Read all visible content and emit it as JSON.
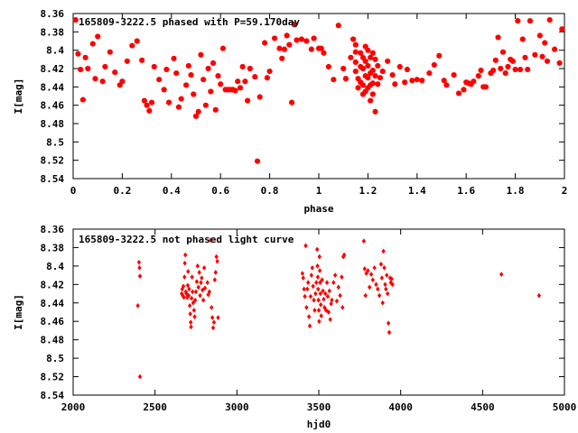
{
  "chart_data": [
    {
      "type": "scatter",
      "title": "165809-3222.5 phased with P=59.170day",
      "xlabel": "phase",
      "ylabel": "I[mag]",
      "xlim": [
        0,
        2
      ],
      "ylim": [
        8.54,
        8.36
      ],
      "y_inverted": true,
      "xticks": [
        "0",
        "0.2",
        "0.4",
        "0.6",
        "0.8",
        "1",
        "1.2",
        "1.4",
        "1.6",
        "1.8",
        "2"
      ],
      "xtick_values": [
        0,
        0.2,
        0.4,
        0.6,
        0.8,
        1.0,
        1.2,
        1.4,
        1.6,
        1.8,
        2.0
      ],
      "yticks": [
        "8.36",
        "8.38",
        "8.4",
        "8.42",
        "8.44",
        "8.46",
        "8.48",
        "8.5",
        "8.52",
        "8.54"
      ],
      "ytick_values": [
        8.36,
        8.38,
        8.4,
        8.42,
        8.44,
        8.46,
        8.48,
        8.5,
        8.52,
        8.54
      ],
      "marker_color": "#ff0000",
      "points": [
        [
          0.01,
          8.367
        ],
        [
          0.02,
          8.404
        ],
        [
          0.03,
          8.421
        ],
        [
          0.04,
          8.454
        ],
        [
          0.05,
          8.408
        ],
        [
          0.06,
          8.42
        ],
        [
          0.08,
          8.393
        ],
        [
          0.09,
          8.431
        ],
        [
          0.1,
          8.385
        ],
        [
          0.12,
          8.434
        ],
        [
          0.13,
          8.418
        ],
        [
          0.15,
          8.402
        ],
        [
          0.17,
          8.424
        ],
        [
          0.19,
          8.438
        ],
        [
          0.2,
          8.434
        ],
        [
          0.22,
          8.412
        ],
        [
          0.24,
          8.395
        ],
        [
          0.26,
          8.39
        ],
        [
          0.28,
          8.411
        ],
        [
          0.29,
          8.455
        ],
        [
          0.3,
          8.46
        ],
        [
          0.31,
          8.466
        ],
        [
          0.32,
          8.457
        ],
        [
          0.33,
          8.418
        ],
        [
          0.35,
          8.432
        ],
        [
          0.37,
          8.443
        ],
        [
          0.38,
          8.421
        ],
        [
          0.39,
          8.457
        ],
        [
          0.41,
          8.409
        ],
        [
          0.42,
          8.425
        ],
        [
          0.43,
          8.462
        ],
        [
          0.44,
          8.453
        ],
        [
          0.46,
          8.438
        ],
        [
          0.47,
          8.417
        ],
        [
          0.48,
          8.427
        ],
        [
          0.49,
          8.448
        ],
        [
          0.5,
          8.472
        ],
        [
          0.51,
          8.467
        ],
        [
          0.52,
          8.405
        ],
        [
          0.53,
          8.432
        ],
        [
          0.54,
          8.46
        ],
        [
          0.55,
          8.42
        ],
        [
          0.56,
          8.445
        ],
        [
          0.57,
          8.414
        ],
        [
          0.58,
          8.465
        ],
        [
          0.59,
          8.428
        ],
        [
          0.6,
          8.437
        ],
        [
          0.61,
          8.398
        ],
        [
          0.62,
          8.443
        ],
        [
          0.63,
          8.443
        ],
        [
          0.64,
          8.443
        ],
        [
          0.65,
          8.443
        ],
        [
          0.66,
          8.444
        ],
        [
          0.67,
          8.434
        ],
        [
          0.68,
          8.441
        ],
        [
          0.69,
          8.418
        ],
        [
          0.7,
          8.434
        ],
        [
          0.71,
          8.455
        ],
        [
          0.72,
          8.42
        ],
        [
          0.74,
          8.429
        ],
        [
          0.75,
          8.521
        ],
        [
          0.76,
          8.451
        ],
        [
          0.78,
          8.392
        ],
        [
          0.79,
          8.43
        ],
        [
          0.8,
          8.423
        ],
        [
          0.82,
          8.387
        ],
        [
          0.84,
          8.398
        ],
        [
          0.85,
          8.409
        ],
        [
          0.86,
          8.399
        ],
        [
          0.87,
          8.384
        ],
        [
          0.88,
          8.394
        ],
        [
          0.89,
          8.457
        ],
        [
          0.9,
          8.372
        ],
        [
          0.91,
          8.389
        ],
        [
          0.93,
          8.388
        ],
        [
          0.95,
          8.39
        ],
        [
          0.97,
          8.399
        ],
        [
          0.98,
          8.387
        ],
        [
          1.0,
          8.398
        ],
        [
          1.01,
          8.398
        ],
        [
          1.02,
          8.403
        ],
        [
          1.04,
          8.418
        ],
        [
          1.06,
          8.432
        ],
        [
          1.08,
          8.373
        ],
        [
          1.1,
          8.42
        ],
        [
          1.11,
          8.431
        ],
        [
          1.13,
          8.408
        ],
        [
          1.14,
          8.388
        ],
        [
          1.15,
          8.394
        ],
        [
          1.15,
          8.402
        ],
        [
          1.15,
          8.413
        ],
        [
          1.15,
          8.423
        ],
        [
          1.16,
          8.431
        ],
        [
          1.16,
          8.441
        ],
        [
          1.17,
          8.403
        ],
        [
          1.17,
          8.418
        ],
        [
          1.17,
          8.435
        ],
        [
          1.18,
          8.408
        ],
        [
          1.18,
          8.42
        ],
        [
          1.18,
          8.438
        ],
        [
          1.18,
          8.448
        ],
        [
          1.19,
          8.396
        ],
        [
          1.19,
          8.412
        ],
        [
          1.19,
          8.428
        ],
        [
          1.19,
          8.445
        ],
        [
          1.2,
          8.4
        ],
        [
          1.2,
          8.417
        ],
        [
          1.2,
          8.43
        ],
        [
          1.2,
          8.441
        ],
        [
          1.21,
          8.408
        ],
        [
          1.21,
          8.425
        ],
        [
          1.21,
          8.438
        ],
        [
          1.21,
          8.455
        ],
        [
          1.22,
          8.403
        ],
        [
          1.22,
          8.422
        ],
        [
          1.22,
          8.436
        ],
        [
          1.22,
          8.448
        ],
        [
          1.23,
          8.41
        ],
        [
          1.23,
          8.428
        ],
        [
          1.23,
          8.467
        ],
        [
          1.24,
          8.417
        ],
        [
          1.24,
          8.437
        ],
        [
          1.25,
          8.43
        ],
        [
          1.26,
          8.423
        ],
        [
          1.28,
          8.412
        ],
        [
          1.3,
          8.427
        ],
        [
          1.31,
          8.437
        ],
        [
          1.33,
          8.418
        ],
        [
          1.35,
          8.435
        ],
        [
          1.36,
          8.421
        ],
        [
          1.38,
          8.433
        ],
        [
          1.4,
          8.432
        ],
        [
          1.42,
          8.433
        ],
        [
          1.45,
          8.425
        ],
        [
          1.47,
          8.416
        ],
        [
          1.49,
          8.406
        ],
        [
          1.51,
          8.433
        ],
        [
          1.52,
          8.438
        ],
        [
          1.55,
          8.427
        ],
        [
          1.57,
          8.447
        ],
        [
          1.59,
          8.443
        ],
        [
          1.6,
          8.435
        ],
        [
          1.61,
          8.436
        ],
        [
          1.62,
          8.437
        ],
        [
          1.63,
          8.434
        ],
        [
          1.65,
          8.428
        ],
        [
          1.66,
          8.422
        ],
        [
          1.67,
          8.44
        ],
        [
          1.68,
          8.44
        ],
        [
          1.7,
          8.425
        ],
        [
          1.71,
          8.422
        ],
        [
          1.72,
          8.411
        ],
        [
          1.73,
          8.386
        ],
        [
          1.74,
          8.42
        ],
        [
          1.75,
          8.402
        ],
        [
          1.76,
          8.425
        ],
        [
          1.77,
          8.418
        ],
        [
          1.78,
          8.41
        ],
        [
          1.79,
          8.412
        ],
        [
          1.8,
          8.421
        ],
        [
          1.81,
          8.368
        ],
        [
          1.82,
          8.421
        ],
        [
          1.83,
          8.388
        ],
        [
          1.84,
          8.408
        ],
        [
          1.85,
          8.421
        ],
        [
          1.86,
          8.368
        ],
        [
          1.88,
          8.405
        ],
        [
          1.9,
          8.384
        ],
        [
          1.91,
          8.407
        ],
        [
          1.92,
          8.392
        ],
        [
          1.93,
          8.412
        ],
        [
          1.94,
          8.367
        ],
        [
          1.96,
          8.399
        ],
        [
          1.98,
          8.414
        ],
        [
          1.99,
          8.377
        ]
      ]
    },
    {
      "type": "scatter",
      "title": "165809-3222.5 not phased light curve",
      "xlabel": "hjd0",
      "ylabel": "I[mag]",
      "xlim": [
        2000,
        5000
      ],
      "ylim": [
        8.54,
        8.36
      ],
      "y_inverted": true,
      "xticks": [
        "2000",
        "2500",
        "3000",
        "3500",
        "4000",
        "4500",
        "5000"
      ],
      "xtick_values": [
        2000,
        2500,
        3000,
        3500,
        4000,
        4500,
        5000
      ],
      "yticks": [
        "8.36",
        "8.38",
        "8.4",
        "8.42",
        "8.44",
        "8.46",
        "8.48",
        "8.5",
        "8.52",
        "8.54"
      ],
      "ytick_values": [
        8.36,
        8.38,
        8.4,
        8.42,
        8.44,
        8.46,
        8.48,
        8.5,
        8.52,
        8.54
      ],
      "marker_color": "#ff0000",
      "points": [
        [
          2395,
          8.443
        ],
        [
          2402,
          8.396
        ],
        [
          2405,
          8.402
        ],
        [
          2408,
          8.411
        ],
        [
          2408,
          8.52
        ],
        [
          2663,
          8.43
        ],
        [
          2666,
          8.425
        ],
        [
          2670,
          8.432
        ],
        [
          2673,
          8.422
        ],
        [
          2676,
          8.434
        ],
        [
          2680,
          8.412
        ],
        [
          2682,
          8.397
        ],
        [
          2685,
          8.388
        ],
        [
          2688,
          8.428
        ],
        [
          2692,
          8.43
        ],
        [
          2697,
          8.434
        ],
        [
          2700,
          8.421
        ],
        [
          2702,
          8.406
        ],
        [
          2705,
          8.432
        ],
        [
          2708,
          8.425
        ],
        [
          2712,
          8.443
        ],
        [
          2715,
          8.452
        ],
        [
          2718,
          8.461
        ],
        [
          2720,
          8.466
        ],
        [
          2723,
          8.435
        ],
        [
          2726,
          8.412
        ],
        [
          2729,
          8.428
        ],
        [
          2733,
          8.44
        ],
        [
          2738,
          8.448
        ],
        [
          2742,
          8.455
        ],
        [
          2745,
          8.437
        ],
        [
          2750,
          8.428
        ],
        [
          2755,
          8.417
        ],
        [
          2760,
          8.4
        ],
        [
          2765,
          8.423
        ],
        [
          2770,
          8.407
        ],
        [
          2775,
          8.432
        ],
        [
          2780,
          8.418
        ],
        [
          2785,
          8.413
        ],
        [
          2790,
          8.426
        ],
        [
          2795,
          8.437
        ],
        [
          2800,
          8.402
        ],
        [
          2805,
          8.424
        ],
        [
          2820,
          8.418
        ],
        [
          2825,
          8.431
        ],
        [
          2832,
          8.428
        ],
        [
          2840,
          8.372
        ],
        [
          2845,
          8.445
        ],
        [
          2850,
          8.456
        ],
        [
          2855,
          8.467
        ],
        [
          2860,
          8.461
        ],
        [
          2865,
          8.415
        ],
        [
          2870,
          8.407
        ],
        [
          2875,
          8.39
        ],
        [
          2880,
          8.395
        ],
        [
          2885,
          8.456
        ],
        [
          3400,
          8.408
        ],
        [
          3405,
          8.413
        ],
        [
          3410,
          8.425
        ],
        [
          3415,
          8.433
        ],
        [
          3420,
          8.378
        ],
        [
          3425,
          8.445
        ],
        [
          3430,
          8.425
        ],
        [
          3435,
          8.418
        ],
        [
          3440,
          8.455
        ],
        [
          3445,
          8.465
        ],
        [
          3450,
          8.433
        ],
        [
          3455,
          8.41
        ],
        [
          3460,
          8.402
        ],
        [
          3465,
          8.422
        ],
        [
          3470,
          8.437
        ],
        [
          3475,
          8.448
        ],
        [
          3480,
          8.43
        ],
        [
          3485,
          8.418
        ],
        [
          3490,
          8.382
        ],
        [
          3492,
          8.4
        ],
        [
          3494,
          8.412
        ],
        [
          3496,
          8.425
        ],
        [
          3498,
          8.437
        ],
        [
          3500,
          8.448
        ],
        [
          3502,
          8.46
        ],
        [
          3504,
          8.39
        ],
        [
          3506,
          8.405
        ],
        [
          3508,
          8.418
        ],
        [
          3510,
          8.43
        ],
        [
          3512,
          8.442
        ],
        [
          3515,
          8.454
        ],
        [
          3520,
          8.415
        ],
        [
          3525,
          8.427
        ],
        [
          3530,
          8.436
        ],
        [
          3535,
          8.445
        ],
        [
          3540,
          8.43
        ],
        [
          3545,
          8.448
        ],
        [
          3550,
          8.418
        ],
        [
          3555,
          8.433
        ],
        [
          3560,
          8.45
        ],
        [
          3565,
          8.427
        ],
        [
          3570,
          8.458
        ],
        [
          3575,
          8.441
        ],
        [
          3580,
          8.437
        ],
        [
          3590,
          8.418
        ],
        [
          3600,
          8.41
        ],
        [
          3610,
          8.438
        ],
        [
          3620,
          8.423
        ],
        [
          3630,
          8.432
        ],
        [
          3640,
          8.412
        ],
        [
          3645,
          8.445
        ],
        [
          3650,
          8.39
        ],
        [
          3655,
          8.388
        ],
        [
          3775,
          8.373
        ],
        [
          3780,
          8.403
        ],
        [
          3785,
          8.432
        ],
        [
          3790,
          8.408
        ],
        [
          3800,
          8.405
        ],
        [
          3810,
          8.423
        ],
        [
          3820,
          8.409
        ],
        [
          3830,
          8.415
        ],
        [
          3840,
          8.402
        ],
        [
          3850,
          8.42
        ],
        [
          3860,
          8.425
        ],
        [
          3870,
          8.432
        ],
        [
          3880,
          8.398
        ],
        [
          3885,
          8.413
        ],
        [
          3890,
          8.44
        ],
        [
          3895,
          8.384
        ],
        [
          3900,
          8.402
        ],
        [
          3905,
          8.42
        ],
        [
          3910,
          8.425
        ],
        [
          3915,
          8.41
        ],
        [
          3920,
          8.43
        ],
        [
          3925,
          8.462
        ],
        [
          3930,
          8.472
        ],
        [
          3935,
          8.413
        ],
        [
          3940,
          8.418
        ],
        [
          3945,
          8.414
        ],
        [
          3950,
          8.42
        ],
        [
          4615,
          8.409
        ],
        [
          4845,
          8.432
        ]
      ]
    }
  ]
}
